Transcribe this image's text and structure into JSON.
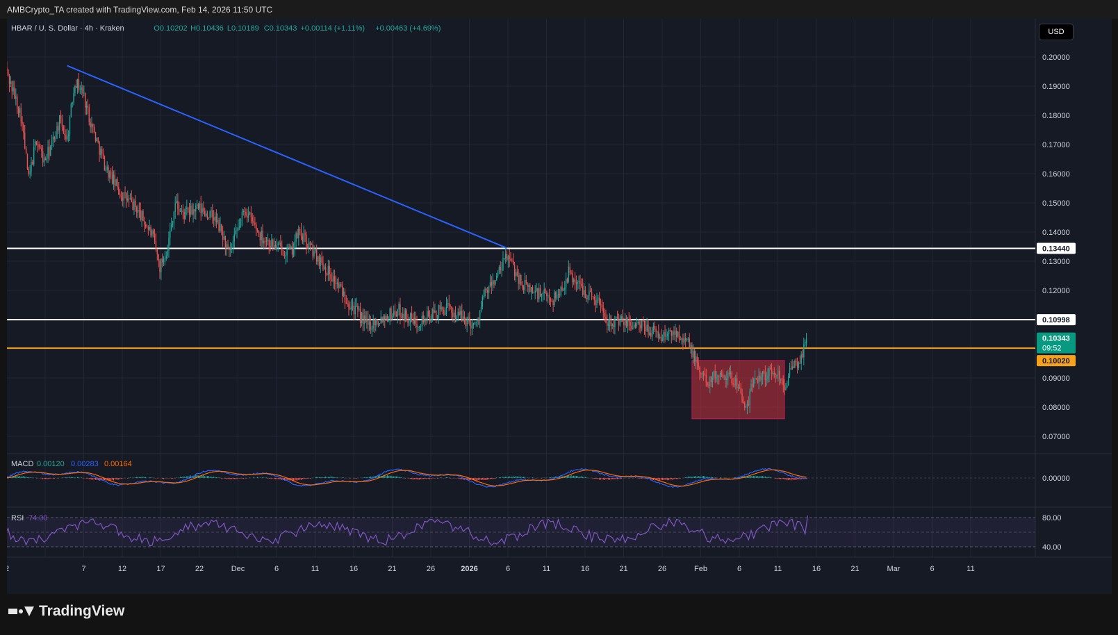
{
  "header": {
    "credit": "AMBCrypto_TA created with TradingView.com, Feb 14, 2026 11:50 UTC"
  },
  "legend": {
    "symbol": "HBAR / U. S. Dollar · 4h · Kraken",
    "o_label": "O",
    "o_value": "0.10202",
    "h_label": "H",
    "h_value": "0.10436",
    "l_label": "L",
    "l_value": "0.10189",
    "c_label": "C",
    "c_value": "0.10343",
    "change": "+0.00114 (+1.11%)",
    "change2": "+0.00463 (+4.69%)"
  },
  "currency_button": "USD",
  "price_axis": {
    "ticks": [
      "0.20000",
      "0.19000",
      "0.18000",
      "0.17000",
      "0.16000",
      "0.15000",
      "0.14000",
      "0.13000",
      "0.12000",
      "0.09000",
      "0.08000",
      "0.07000"
    ],
    "resistance_label": "0.13440",
    "level2_label": "0.10998",
    "current_price": "0.10343",
    "countdown": "09:52",
    "support_label": "0.10020"
  },
  "macd": {
    "title": "MACD",
    "v1": "0.00120",
    "v2": "0.00283",
    "v3": "0.00164",
    "zero_label": "0.00000"
  },
  "rsi": {
    "title": "RSI",
    "value": "74.00",
    "upper_label": "80.00",
    "lower_label": "40.00"
  },
  "time_axis": {
    "labels": [
      "2",
      "7",
      "12",
      "17",
      "22",
      "Dec",
      "6",
      "11",
      "16",
      "21",
      "26",
      "2026",
      "6",
      "11",
      "16",
      "21",
      "26",
      "Feb",
      "6",
      "11",
      "16",
      "21",
      "Mar",
      "6",
      "11"
    ]
  },
  "colors": {
    "up": "#26a69a",
    "down": "#ef5350",
    "trendline": "#2962ff",
    "support": "#f7a21b",
    "macd_line": "#2962ff",
    "signal_line": "#ff6d00",
    "rsi_line": "#7e57c2"
  },
  "chart_data": {
    "type": "candlestick",
    "symbol": "HBAR / U. S. Dollar",
    "timeframe": "4h",
    "exchange": "Kraken",
    "ylim": [
      0.065,
      0.205
    ],
    "ohlc_last": {
      "open": 0.10202,
      "high": 0.10436,
      "low": 0.10189,
      "close": 0.10343
    },
    "horizontal_levels": [
      0.1344,
      0.10998,
      0.1002
    ],
    "trendline": [
      {
        "x": "2025-11-10",
        "y": 0.197
      },
      {
        "x": "2026-01-06",
        "y": 0.1345
      }
    ],
    "range_box": {
      "x_start": "2026-01-30",
      "x_end": "2026-02-11",
      "y_low": 0.076,
      "y_high": 0.096
    },
    "close_path": [
      {
        "x": "2025-11-02",
        "y": 0.196
      },
      {
        "x": "2025-11-04",
        "y": 0.18
      },
      {
        "x": "2025-11-05",
        "y": 0.158
      },
      {
        "x": "2025-11-06",
        "y": 0.172
      },
      {
        "x": "2025-11-07",
        "y": 0.164
      },
      {
        "x": "2025-11-08",
        "y": 0.17
      },
      {
        "x": "2025-11-09",
        "y": 0.178
      },
      {
        "x": "2025-11-10",
        "y": 0.172
      },
      {
        "x": "2025-11-11",
        "y": 0.192
      },
      {
        "x": "2025-11-12",
        "y": 0.188
      },
      {
        "x": "2025-11-13",
        "y": 0.178
      },
      {
        "x": "2025-11-14",
        "y": 0.17
      },
      {
        "x": "2025-11-15",
        "y": 0.162
      },
      {
        "x": "2025-11-17",
        "y": 0.153
      },
      {
        "x": "2025-11-19",
        "y": 0.148
      },
      {
        "x": "2025-11-21",
        "y": 0.139
      },
      {
        "x": "2025-11-22",
        "y": 0.128
      },
      {
        "x": "2025-11-23",
        "y": 0.135
      },
      {
        "x": "2025-11-24",
        "y": 0.15
      },
      {
        "x": "2025-11-25",
        "y": 0.146
      },
      {
        "x": "2025-11-27",
        "y": 0.148
      },
      {
        "x": "2025-11-29",
        "y": 0.145
      },
      {
        "x": "2025-11-30",
        "y": 0.14
      },
      {
        "x": "2025-12-01",
        "y": 0.132
      },
      {
        "x": "2025-12-02",
        "y": 0.14
      },
      {
        "x": "2025-12-03",
        "y": 0.148
      },
      {
        "x": "2025-12-05",
        "y": 0.139
      },
      {
        "x": "2025-12-07",
        "y": 0.135
      },
      {
        "x": "2025-12-09",
        "y": 0.133
      },
      {
        "x": "2025-12-10",
        "y": 0.14
      },
      {
        "x": "2025-12-12",
        "y": 0.133
      },
      {
        "x": "2025-12-14",
        "y": 0.126
      },
      {
        "x": "2025-12-16",
        "y": 0.118
      },
      {
        "x": "2025-12-18",
        "y": 0.111
      },
      {
        "x": "2025-12-19",
        "y": 0.108
      },
      {
        "x": "2025-12-21",
        "y": 0.111
      },
      {
        "x": "2025-12-23",
        "y": 0.113
      },
      {
        "x": "2025-12-25",
        "y": 0.109
      },
      {
        "x": "2025-12-27",
        "y": 0.111
      },
      {
        "x": "2025-12-29",
        "y": 0.114
      },
      {
        "x": "2025-12-31",
        "y": 0.111
      },
      {
        "x": "2026-01-02",
        "y": 0.108
      },
      {
        "x": "2026-01-03",
        "y": 0.118
      },
      {
        "x": "2026-01-05",
        "y": 0.126
      },
      {
        "x": "2026-01-06",
        "y": 0.132
      },
      {
        "x": "2026-01-08",
        "y": 0.122
      },
      {
        "x": "2026-01-10",
        "y": 0.119
      },
      {
        "x": "2026-01-12",
        "y": 0.117
      },
      {
        "x": "2026-01-13",
        "y": 0.12
      },
      {
        "x": "2026-01-14",
        "y": 0.126
      },
      {
        "x": "2026-01-16",
        "y": 0.12
      },
      {
        "x": "2026-01-18",
        "y": 0.116
      },
      {
        "x": "2026-01-19",
        "y": 0.11
      },
      {
        "x": "2026-01-21",
        "y": 0.109
      },
      {
        "x": "2026-01-23",
        "y": 0.108
      },
      {
        "x": "2026-01-25",
        "y": 0.106
      },
      {
        "x": "2026-01-26",
        "y": 0.104
      },
      {
        "x": "2026-01-28",
        "y": 0.106
      },
      {
        "x": "2026-01-29",
        "y": 0.104
      },
      {
        "x": "2026-01-30",
        "y": 0.099
      },
      {
        "x": "2026-01-31",
        "y": 0.092
      },
      {
        "x": "2026-02-01",
        "y": 0.089
      },
      {
        "x": "2026-02-03",
        "y": 0.092
      },
      {
        "x": "2026-02-05",
        "y": 0.088
      },
      {
        "x": "2026-02-06",
        "y": 0.078
      },
      {
        "x": "2026-02-07",
        "y": 0.09
      },
      {
        "x": "2026-02-08",
        "y": 0.091
      },
      {
        "x": "2026-02-10",
        "y": 0.092
      },
      {
        "x": "2026-02-11",
        "y": 0.088
      },
      {
        "x": "2026-02-12",
        "y": 0.093
      },
      {
        "x": "2026-02-13",
        "y": 0.096
      },
      {
        "x": "2026-02-14",
        "y": 0.1034
      }
    ],
    "macd_values": {
      "macd": 0.0012,
      "signal": 0.00283,
      "histogram": 0.00164
    },
    "rsi_value": 74.0,
    "rsi_levels": [
      80,
      40
    ]
  }
}
